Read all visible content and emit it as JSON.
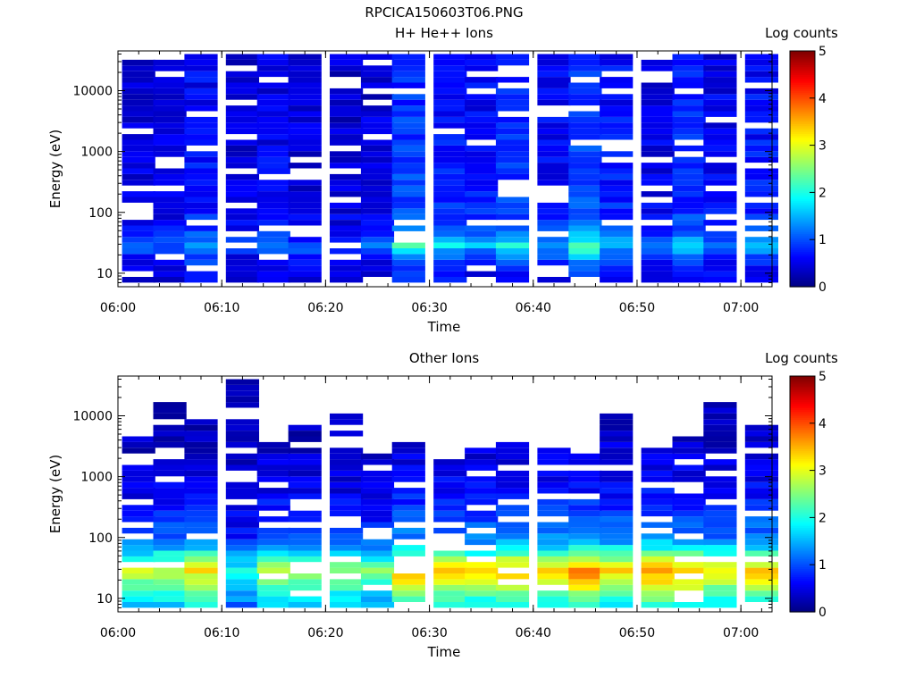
{
  "figure_title": "RPCICA150603T06.PNG",
  "chart_data": [
    {
      "type": "heatmap",
      "title": "H+ He++ Ions",
      "xlabel": "Time",
      "ylabel": "Energy (eV)",
      "colorbar_label": "Log counts",
      "x_tick_labels": [
        "06:00",
        "06:10",
        "06:20",
        "06:30",
        "06:40",
        "06:50",
        "07:00"
      ],
      "xlim": [
        "06:00",
        "07:03"
      ],
      "y_scale": "log",
      "ylim": [
        6,
        45000
      ],
      "y_tick_labels": [
        "10",
        "100",
        "1000",
        "10000"
      ],
      "colorbar_range": [
        0,
        5
      ],
      "colorbar_ticks": [
        "0",
        "1",
        "2",
        "3",
        "4",
        "5"
      ],
      "colormap": [
        "#00007f",
        "#0000ff",
        "#007fff",
        "#00ffff",
        "#7fff7f",
        "#ffff00",
        "#ff7f00",
        "#ff0000",
        "#7f0000"
      ],
      "time_bins": [
        "06:02",
        "06:05",
        "06:08",
        "06:12",
        "06:15",
        "06:18",
        "06:22",
        "06:25",
        "06:28",
        "06:32",
        "06:35",
        "06:38",
        "06:42",
        "06:45",
        "06:48",
        "06:52",
        "06:55",
        "06:58",
        "07:02"
      ],
      "profile": [
        {
          "energy": 8,
          "level": 0.5
        },
        {
          "energy": 12,
          "level": 0.6
        },
        {
          "energy": 20,
          "level": 0.9
        },
        {
          "energy": 28,
          "level": 1.4
        },
        {
          "energy": 40,
          "level": 0.9
        },
        {
          "energy": 70,
          "level": 0.7
        },
        {
          "energy": 200,
          "level": 0.6
        },
        {
          "energy": 40000,
          "level": 0.5
        }
      ],
      "max_energy": [
        40000,
        40000,
        40000,
        40000,
        40000,
        40000,
        40000,
        40000,
        40000,
        40000,
        40000,
        40000,
        40000,
        40000,
        40000,
        40000,
        40000,
        40000,
        40000
      ],
      "peak": [
        1.2,
        1.1,
        1.6,
        1.0,
        1.4,
        1.1,
        1.0,
        1.1,
        2.2,
        1.8,
        1.6,
        2.0,
        1.5,
        2.4,
        1.7,
        1.3,
        1.9,
        1.4,
        1.7
      ]
    },
    {
      "type": "heatmap",
      "title": "Other Ions",
      "xlabel": "Time",
      "ylabel": "Energy (eV)",
      "colorbar_label": "Log counts",
      "x_tick_labels": [
        "06:00",
        "06:10",
        "06:20",
        "06:30",
        "06:40",
        "06:50",
        "07:00"
      ],
      "xlim": [
        "06:00",
        "07:03"
      ],
      "y_scale": "log",
      "ylim": [
        6,
        45000
      ],
      "y_tick_labels": [
        "10",
        "100",
        "1000",
        "10000"
      ],
      "colorbar_range": [
        0,
        5
      ],
      "colorbar_ticks": [
        "0",
        "1",
        "2",
        "3",
        "4",
        "5"
      ],
      "colormap": [
        "#00007f",
        "#0000ff",
        "#007fff",
        "#00ffff",
        "#7fff7f",
        "#ffff00",
        "#ff7f00",
        "#ff0000",
        "#7f0000"
      ],
      "time_bins": [
        "06:02",
        "06:05",
        "06:08",
        "06:12",
        "06:15",
        "06:18",
        "06:22",
        "06:25",
        "06:28",
        "06:32",
        "06:35",
        "06:38",
        "06:42",
        "06:45",
        "06:48",
        "06:52",
        "06:55",
        "06:58",
        "07:02"
      ],
      "profile": [
        {
          "energy": 8,
          "level": 1.9
        },
        {
          "energy": 12,
          "level": 2.3
        },
        {
          "energy": 18,
          "level": 2.8
        },
        {
          "energy": 28,
          "level": 3.3
        },
        {
          "energy": 40,
          "level": 2.7
        },
        {
          "energy": 60,
          "level": 1.9
        },
        {
          "energy": 100,
          "level": 1.2
        },
        {
          "energy": 300,
          "level": 0.8
        },
        {
          "energy": 1000,
          "level": 0.5
        },
        {
          "energy": 40000,
          "level": 0.2
        }
      ],
      "max_energy": [
        6000,
        18000,
        9000,
        40000,
        3500,
        6500,
        12000,
        3200,
        4000,
        1800,
        3000,
        5000,
        3000,
        2600,
        12000,
        3000,
        4500,
        18000,
        7500
      ],
      "peak": [
        2.8,
        2.9,
        3.2,
        2.0,
        3.0,
        2.7,
        2.7,
        2.5,
        3.6,
        3.5,
        3.3,
        3.6,
        3.4,
        3.8,
        3.4,
        3.7,
        3.6,
        3.2,
        3.4
      ]
    }
  ]
}
